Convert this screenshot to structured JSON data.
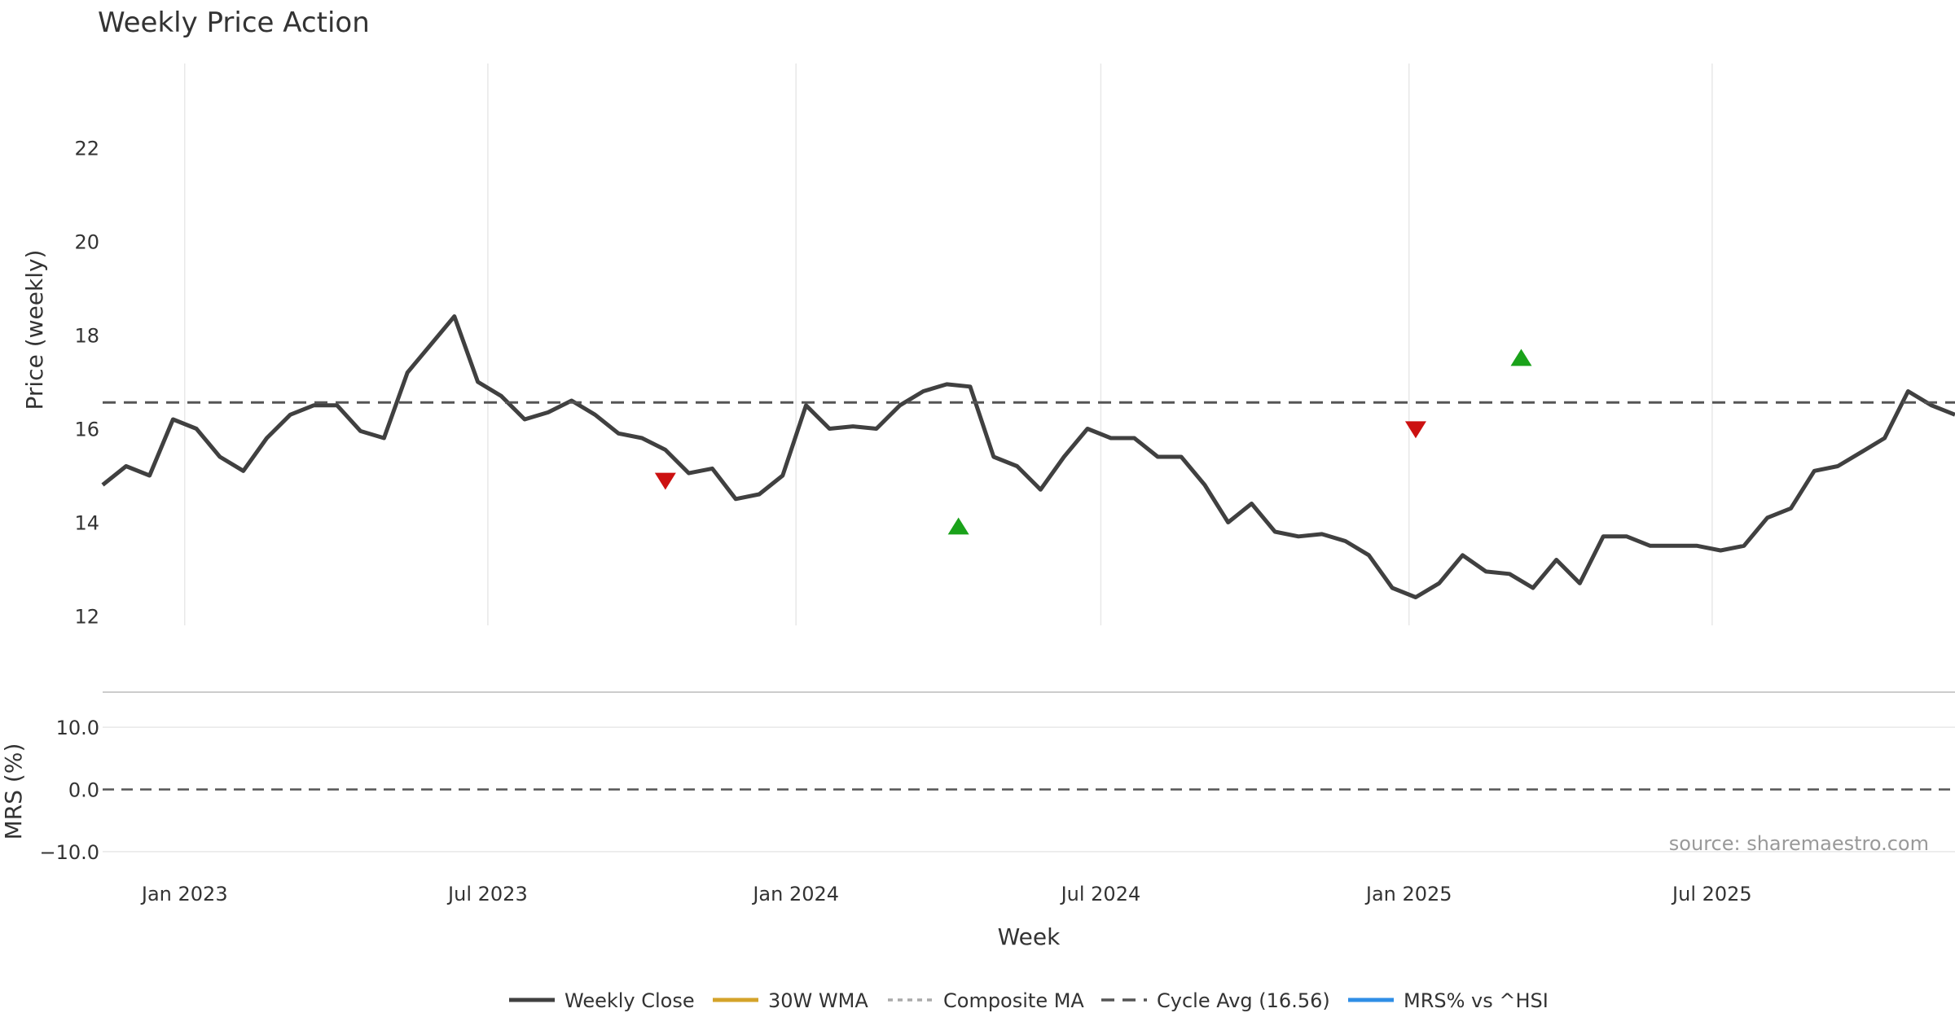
{
  "chart_data": {
    "type": "line",
    "title": "Weekly Price Action",
    "xlabel": "Week",
    "x_ticks": [
      "Jan 2023",
      "Jul 2023",
      "Jan 2024",
      "Jul 2024",
      "Jan 2025",
      "Jul 2025"
    ],
    "x_range": [
      "2022-11-13",
      "2025-11-23"
    ],
    "source_note": "source: sharemaestro.com",
    "colors": {
      "weekly_close": "#404040",
      "wma": "#d4a32a",
      "composite_ma": "#aaaaaa",
      "cycle_avg": "#555555",
      "mrs": "#2f8ee6",
      "buy_marker": "#1aa21a",
      "sell_marker": "#cc1111"
    },
    "price_panel": {
      "ylabel": "Price (weekly)",
      "ylim": [
        11.8,
        23.8
      ],
      "yticks": [
        12,
        14,
        16,
        18,
        20,
        22
      ],
      "cycle_avg": 16.56,
      "series": [
        {
          "name": "Weekly Close",
          "key": "weekly_close",
          "points": [
            [
              "2022-11-13",
              14.8
            ],
            [
              "2022-11-27",
              15.2
            ],
            [
              "2022-12-11",
              15.0
            ],
            [
              "2022-12-25",
              16.2
            ],
            [
              "2023-01-08",
              16.0
            ],
            [
              "2023-01-22",
              15.4
            ],
            [
              "2023-02-05",
              15.1
            ],
            [
              "2023-02-19",
              15.8
            ],
            [
              "2023-03-05",
              16.3
            ],
            [
              "2023-03-19",
              16.5
            ],
            [
              "2023-04-02",
              16.5
            ],
            [
              "2023-04-16",
              15.95
            ],
            [
              "2023-04-30",
              15.8
            ],
            [
              "2023-05-14",
              17.2
            ],
            [
              "2023-05-28",
              17.8
            ],
            [
              "2023-06-11",
              18.4
            ],
            [
              "2023-06-25",
              17.0
            ],
            [
              "2023-07-09",
              16.7
            ],
            [
              "2023-07-23",
              16.2
            ],
            [
              "2023-08-06",
              16.35
            ],
            [
              "2023-08-20",
              16.6
            ],
            [
              "2023-09-03",
              16.3
            ],
            [
              "2023-09-17",
              15.9
            ],
            [
              "2023-10-01",
              15.8
            ],
            [
              "2023-10-15",
              15.55
            ],
            [
              "2023-10-29",
              15.05
            ],
            [
              "2023-11-12",
              15.15
            ],
            [
              "2023-11-26",
              14.5
            ],
            [
              "2023-12-10",
              14.6
            ],
            [
              "2023-12-24",
              15.0
            ],
            [
              "2024-01-07",
              16.5
            ],
            [
              "2024-01-21",
              16.0
            ],
            [
              "2024-02-04",
              16.05
            ],
            [
              "2024-02-18",
              16.0
            ],
            [
              "2024-03-03",
              16.5
            ],
            [
              "2024-03-17",
              16.8
            ],
            [
              "2024-03-31",
              16.95
            ],
            [
              "2024-04-14",
              16.9
            ],
            [
              "2024-04-28",
              15.4
            ],
            [
              "2024-05-12",
              15.2
            ],
            [
              "2024-05-26",
              14.7
            ],
            [
              "2024-06-09",
              15.4
            ],
            [
              "2024-06-23",
              16.0
            ],
            [
              "2024-07-07",
              15.8
            ],
            [
              "2024-07-21",
              15.8
            ],
            [
              "2024-08-04",
              15.4
            ],
            [
              "2024-08-18",
              15.4
            ],
            [
              "2024-09-01",
              14.8
            ],
            [
              "2024-09-15",
              14.0
            ],
            [
              "2024-09-29",
              14.4
            ],
            [
              "2024-10-13",
              13.8
            ],
            [
              "2024-10-27",
              13.7
            ],
            [
              "2024-11-10",
              13.75
            ],
            [
              "2024-11-24",
              13.6
            ],
            [
              "2024-12-08",
              13.3
            ],
            [
              "2024-12-22",
              12.6
            ],
            [
              "2025-01-05",
              12.4
            ],
            [
              "2025-01-19",
              12.7
            ],
            [
              "2025-02-02",
              13.3
            ],
            [
              "2025-02-16",
              12.95
            ],
            [
              "2025-03-02",
              12.9
            ],
            [
              "2025-03-16",
              12.6
            ],
            [
              "2025-03-30",
              13.2
            ],
            [
              "2025-04-13",
              12.7
            ],
            [
              "2025-04-27",
              13.7
            ],
            [
              "2025-05-11",
              13.7
            ],
            [
              "2025-05-25",
              13.5
            ],
            [
              "2025-06-08",
              13.5
            ],
            [
              "2025-06-22",
              13.5
            ],
            [
              "2025-07-06",
              13.4
            ],
            [
              "2025-07-20",
              13.5
            ],
            [
              "2025-08-03",
              14.1
            ],
            [
              "2025-08-17",
              14.3
            ],
            [
              "2025-08-31",
              15.1
            ],
            [
              "2025-09-14",
              15.2
            ],
            [
              "2025-09-28",
              15.5
            ],
            [
              "2025-10-12",
              15.8
            ],
            [
              "2025-10-26",
              16.8
            ],
            [
              "2025-11-09",
              16.5
            ],
            [
              "2025-11-23",
              16.3
            ]
          ]
        },
        {
          "name": "30W WMA",
          "key": "wma",
          "points": []
        },
        {
          "name": "Composite MA",
          "key": "composite_ma",
          "points": []
        }
      ],
      "markers": [
        {
          "type": "sell",
          "x": "2023-10-15",
          "y": 14.9
        },
        {
          "type": "buy",
          "x": "2024-04-07",
          "y": 13.9
        },
        {
          "type": "sell",
          "x": "2025-01-05",
          "y": 16.0
        },
        {
          "type": "buy",
          "x": "2025-03-09",
          "y": 17.5
        }
      ]
    },
    "mrs_panel": {
      "ylabel": "MRS (%)",
      "ylim": [
        -12.5,
        15
      ],
      "yticks": [
        10.0,
        0.0,
        -10.0
      ],
      "ytick_labels": [
        "10.0",
        "0.0",
        "−10.0"
      ],
      "series": [
        {
          "name": "MRS% vs ^HSI",
          "key": "mrs",
          "points": []
        }
      ]
    },
    "legend": {
      "position": "bottom-center",
      "entries": [
        {
          "label": "Weekly Close",
          "key": "weekly_close",
          "style": "solid"
        },
        {
          "label": "30W WMA",
          "key": "wma",
          "style": "solid"
        },
        {
          "label": "Composite MA",
          "key": "composite_ma",
          "style": "dotted"
        },
        {
          "label": "Cycle Avg (16.56)",
          "key": "cycle_avg",
          "style": "dashed"
        },
        {
          "label": "MRS% vs ^HSI",
          "key": "mrs",
          "style": "solid"
        }
      ]
    }
  }
}
